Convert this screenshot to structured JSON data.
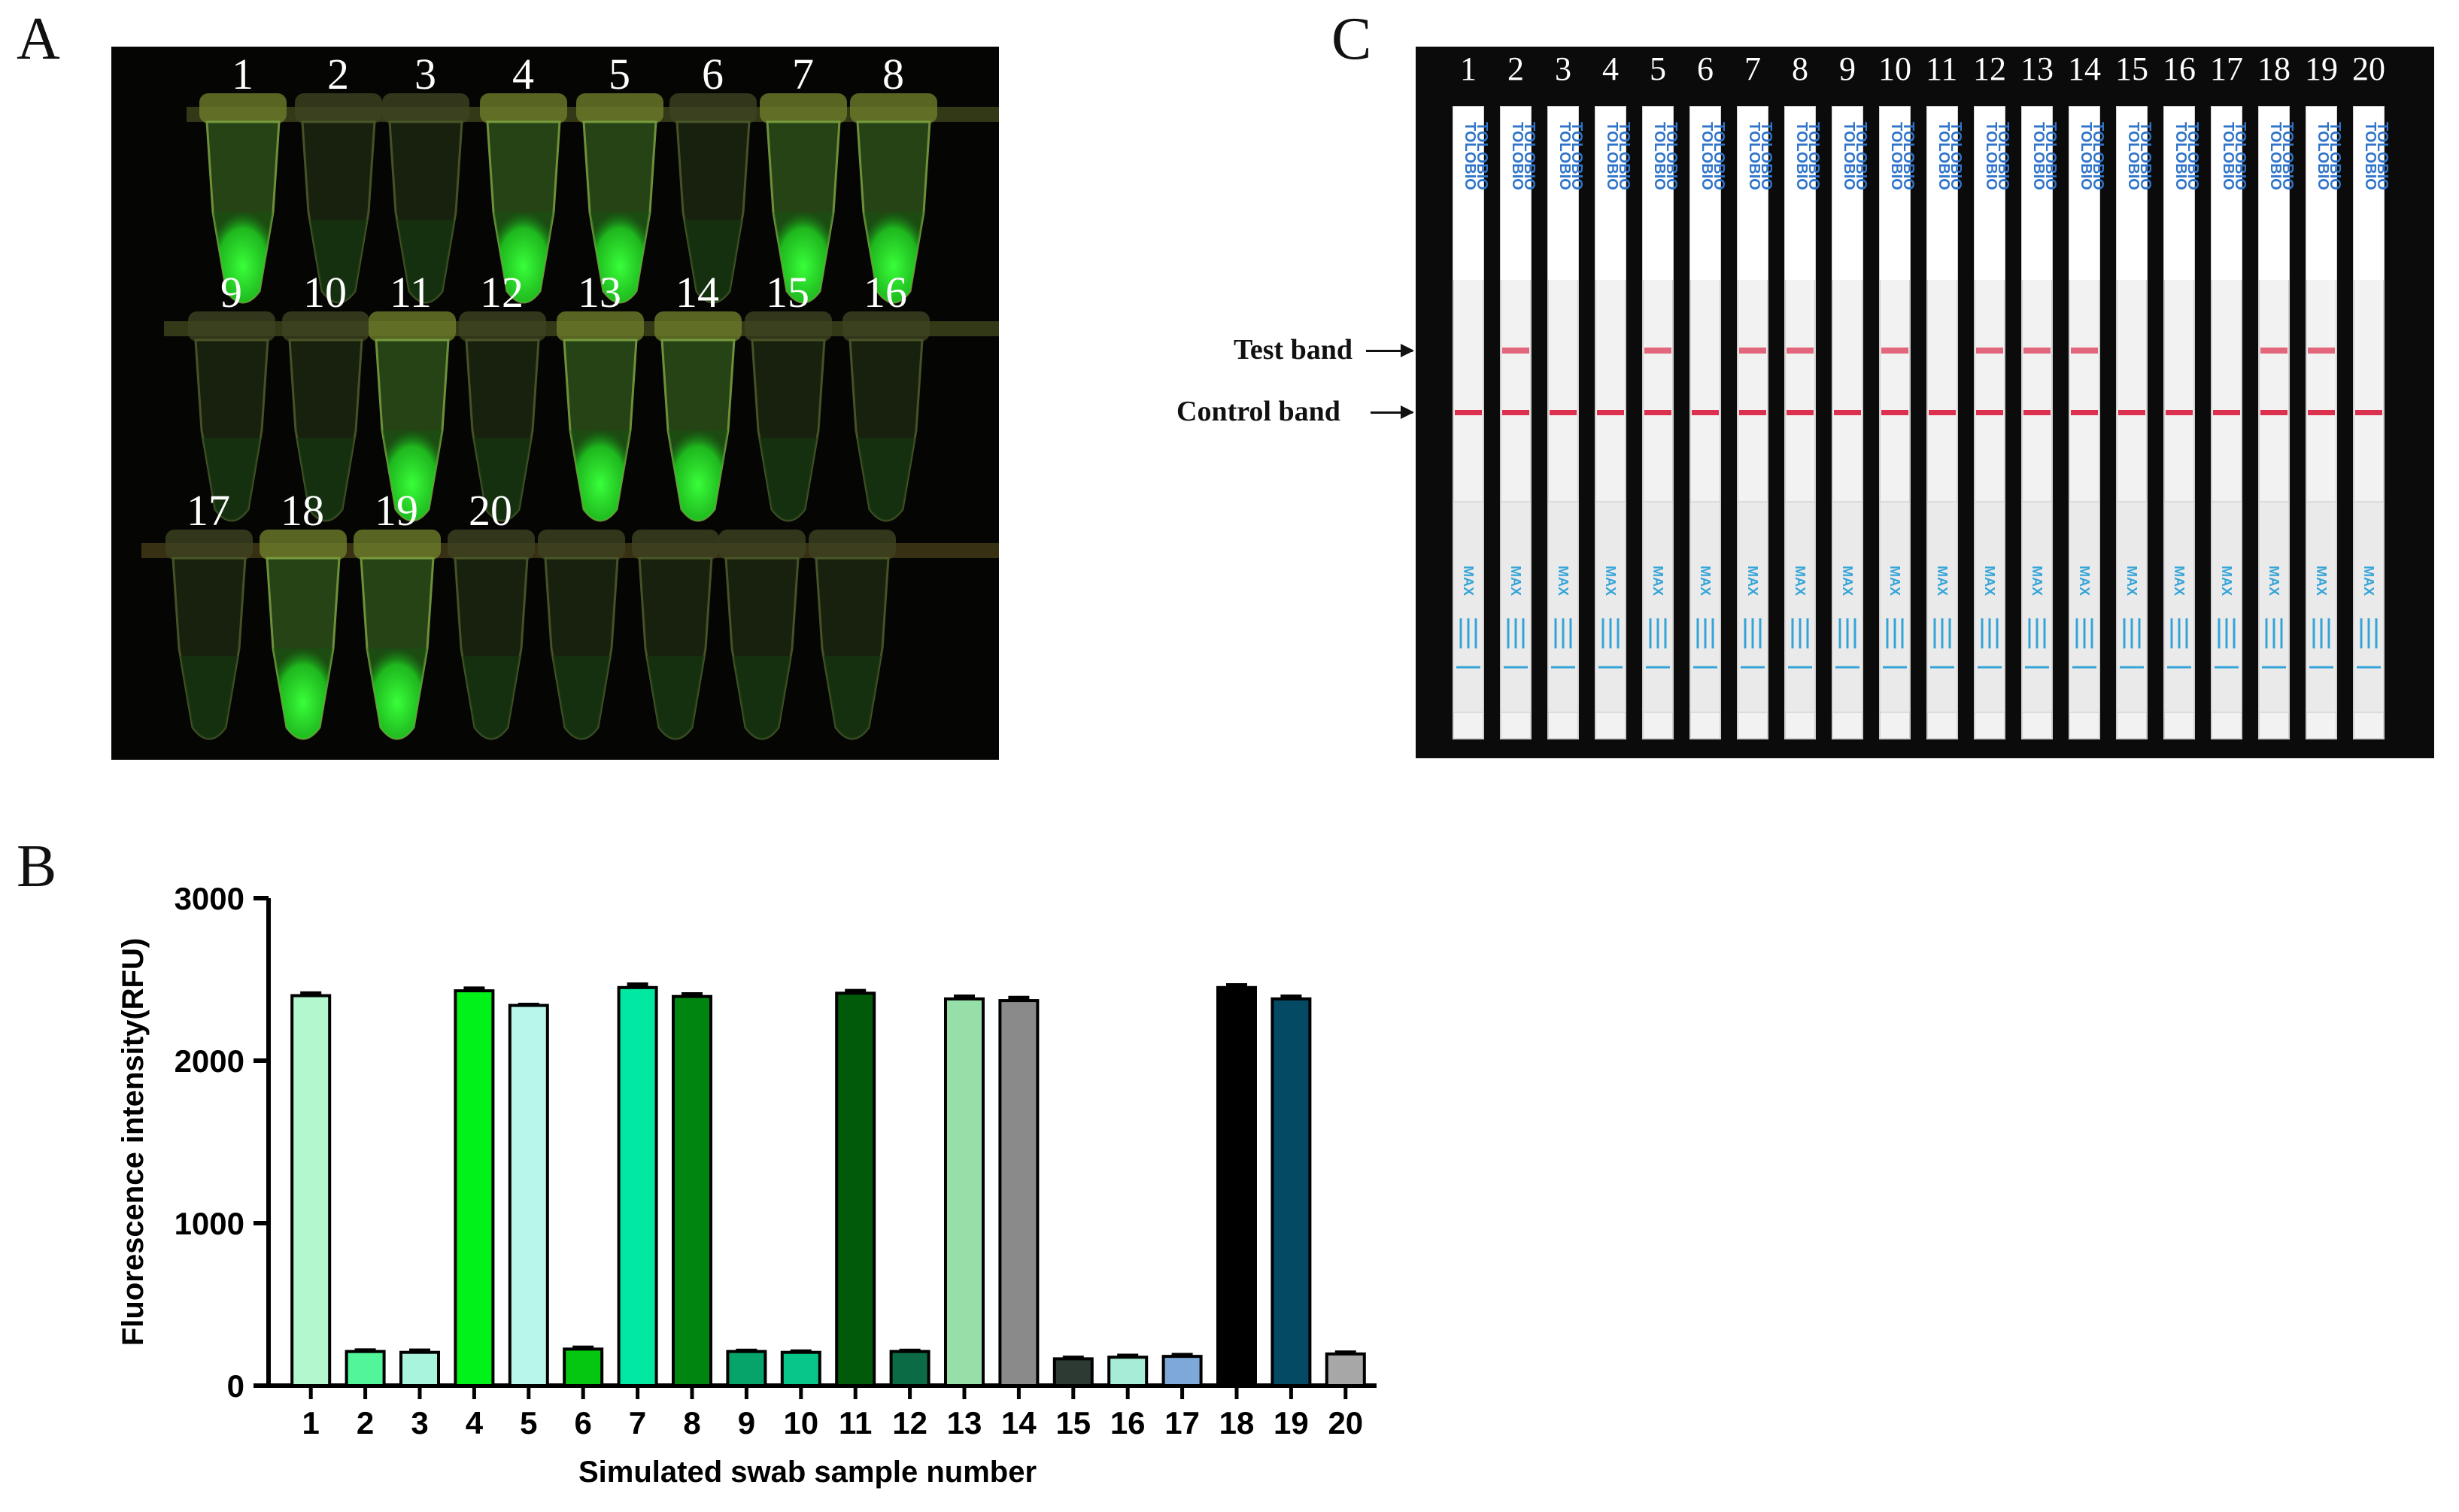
{
  "panels": {
    "a": "A",
    "b": "B",
    "c": "C"
  },
  "panel_a": {
    "tube_labels": [
      "1",
      "2",
      "3",
      "4",
      "5",
      "6",
      "7",
      "8",
      "9",
      "10",
      "11",
      "12",
      "13",
      "14",
      "15",
      "16",
      "17",
      "18",
      "19",
      "20"
    ],
    "glow_color": "#39ff3a"
  },
  "panel_c": {
    "strip_labels": [
      "1",
      "2",
      "3",
      "4",
      "5",
      "6",
      "7",
      "8",
      "9",
      "10",
      "11",
      "12",
      "13",
      "14",
      "15",
      "16",
      "17",
      "18",
      "19",
      "20"
    ],
    "strip_text": "TOLOBIO",
    "max_text": "MAX",
    "test_band_label": "Test band",
    "control_band_label": "Control band",
    "band_color": "#d81b3c"
  },
  "chart_data": {
    "type": "bar",
    "categories": [
      "1",
      "2",
      "3",
      "4",
      "5",
      "6",
      "7",
      "8",
      "9",
      "10",
      "11",
      "12",
      "13",
      "14",
      "15",
      "16",
      "17",
      "18",
      "19",
      "20"
    ],
    "values": [
      2400,
      210,
      205,
      2430,
      2340,
      225,
      2450,
      2395,
      210,
      205,
      2415,
      210,
      2380,
      2370,
      165,
      175,
      180,
      2450,
      2380,
      195
    ],
    "errors": [
      15,
      8,
      12,
      15,
      5,
      10,
      20,
      15,
      6,
      6,
      15,
      6,
      15,
      18,
      8,
      10,
      10,
      15,
      15,
      10
    ],
    "colors": [
      "#b3f7cf",
      "#52f59a",
      "#a9f4dc",
      "#00f218",
      "#b8f6ea",
      "#05c70f",
      "#00e8a2",
      "#008510",
      "#06a36a",
      "#08c58a",
      "#005a09",
      "#0b6b45",
      "#96dfa8",
      "#8a8a8a",
      "#2d3a33",
      "#a6ecd6",
      "#7ea8d8",
      "#000000",
      "#054a64",
      "#a7a7a7"
    ],
    "xlabel": "Simulated swab sample number",
    "ylabel": "Fluorescence intensity(RFU)",
    "ylim": [
      0,
      3000
    ],
    "yticks": [
      "0",
      "1000",
      "2000",
      "3000"
    ],
    "grid": false
  }
}
